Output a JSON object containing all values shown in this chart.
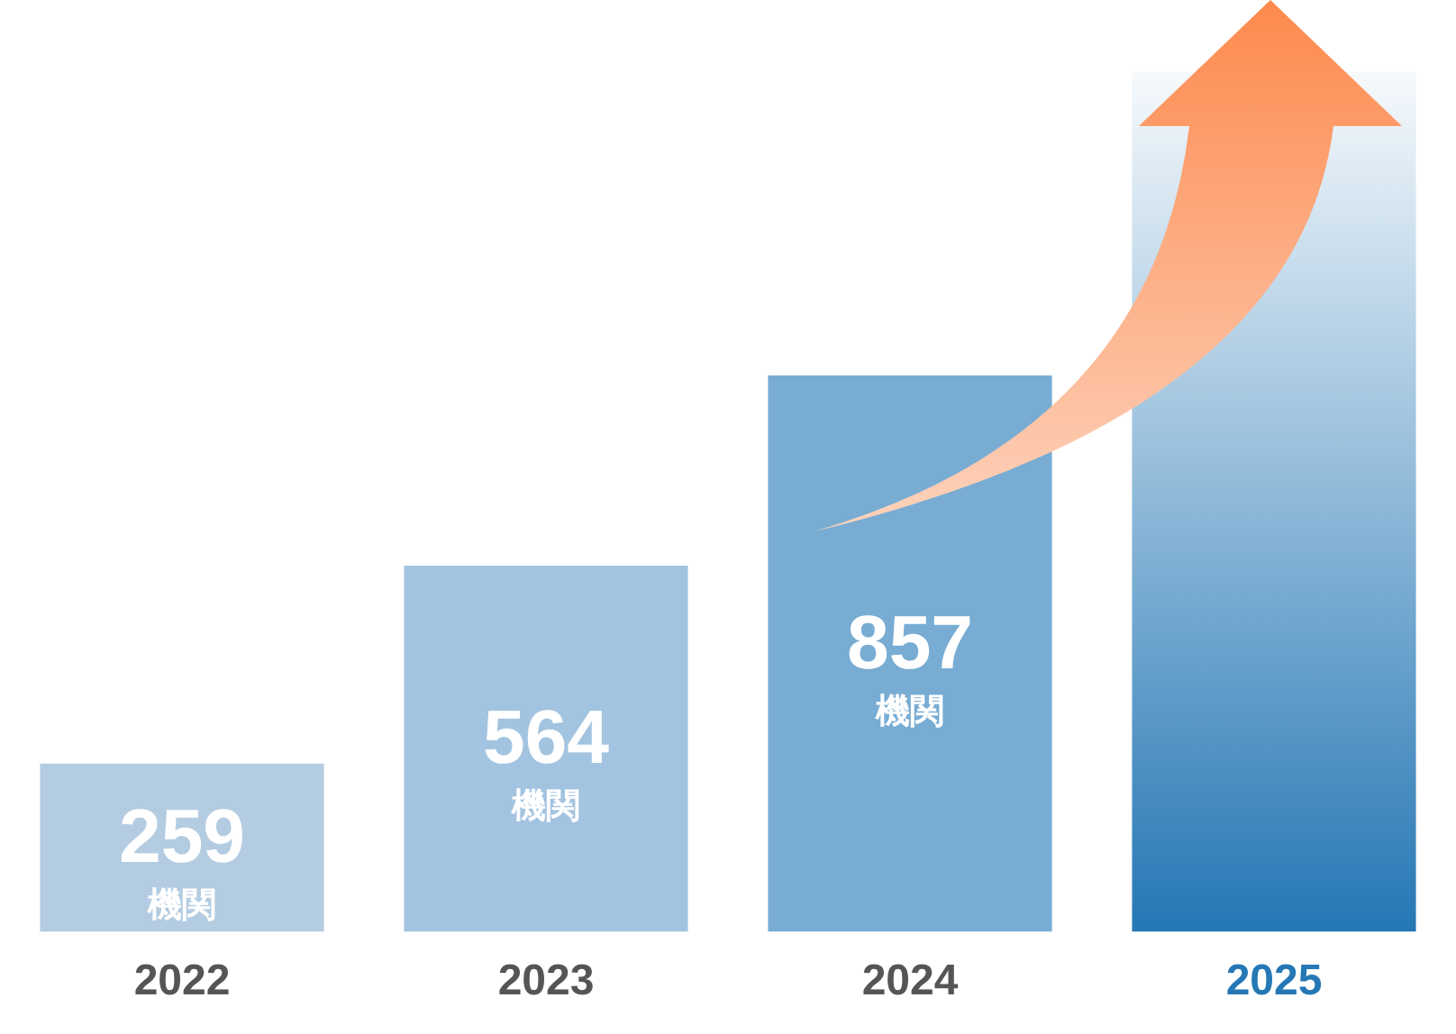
{
  "chart_data": {
    "type": "bar",
    "categories": [
      "2022",
      "2023",
      "2024",
      "2025"
    ],
    "values": [
      259,
      564,
      857,
      1325
    ],
    "value_labels": [
      "259\n機関",
      "564\n機関",
      "857\n機関",
      null
    ],
    "colors": [
      "#b4cce1",
      "#a3c4e0",
      "#78acd3",
      "#2577b5"
    ],
    "tick_labels": "x",
    "grid": false,
    "legend": false
  }
}
